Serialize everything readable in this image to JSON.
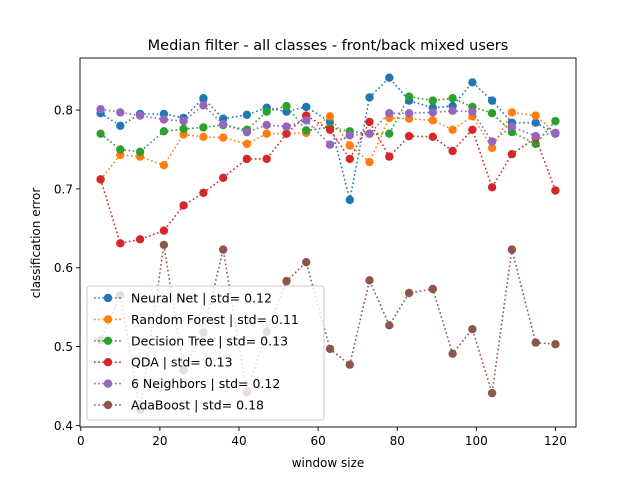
{
  "chart_data": {
    "type": "line",
    "title": "Median filter - all classes - front/back mixed users",
    "xlabel": "window size",
    "ylabel": "classification error",
    "xlim": [
      -0.2,
      125.2
    ],
    "ylim": [
      0.398,
      0.866
    ],
    "xticks": [
      0,
      20,
      40,
      60,
      80,
      100,
      120
    ],
    "xtick_labels": [
      "0",
      "20",
      "40",
      "60",
      "80",
      "100",
      "120"
    ],
    "yticks": [
      0.4,
      0.5,
      0.6,
      0.7,
      0.8
    ],
    "ytick_labels": [
      "0.4",
      "0.5",
      "0.6",
      "0.7",
      "0.8"
    ],
    "grid": false,
    "legend_position": "lower-left",
    "marker": "circle",
    "line_style": "dotted",
    "x": [
      5,
      10,
      15,
      21,
      26,
      31,
      36,
      42,
      47,
      52,
      57,
      63,
      68,
      73,
      78,
      83,
      89,
      94,
      99,
      104,
      109,
      115,
      120
    ],
    "series": [
      {
        "name": "Neural Net | std= 0.12",
        "color": "#1f77b4",
        "values": [
          0.796,
          0.78,
          0.795,
          0.795,
          0.79,
          0.815,
          0.789,
          0.794,
          0.803,
          0.798,
          0.804,
          0.785,
          0.686,
          0.816,
          0.841,
          0.812,
          0.803,
          0.805,
          0.835,
          0.812,
          0.784,
          0.784,
          0.77
        ]
      },
      {
        "name": "Random Forest | std= 0.11",
        "color": "#ff7f0e",
        "values": [
          0.712,
          0.743,
          0.741,
          0.73,
          0.769,
          0.766,
          0.765,
          0.757,
          0.77,
          0.77,
          0.771,
          0.792,
          0.755,
          0.734,
          0.79,
          0.789,
          0.787,
          0.775,
          0.792,
          0.752,
          0.797,
          0.793,
          0.771
        ]
      },
      {
        "name": "Decision Tree | std= 0.13",
        "color": "#2ca02c",
        "values": [
          0.77,
          0.75,
          0.747,
          0.773,
          0.776,
          0.778,
          0.781,
          0.775,
          0.798,
          0.805,
          0.774,
          0.778,
          0.773,
          0.77,
          0.77,
          0.817,
          0.812,
          0.815,
          0.804,
          0.796,
          0.772,
          0.757,
          0.786
        ]
      },
      {
        "name": "QDA | std= 0.13",
        "color": "#d62728",
        "values": [
          0.712,
          0.631,
          0.636,
          0.647,
          0.679,
          0.695,
          0.714,
          0.738,
          0.738,
          0.77,
          0.793,
          0.775,
          0.738,
          0.785,
          0.741,
          0.767,
          0.766,
          0.748,
          0.775,
          0.702,
          0.744,
          0.765,
          0.698
        ]
      },
      {
        "name": "6 Neighbors | std= 0.12",
        "color": "#9467bd",
        "values": [
          0.801,
          0.797,
          0.793,
          0.788,
          0.786,
          0.806,
          0.782,
          0.772,
          0.781,
          0.779,
          0.787,
          0.756,
          0.768,
          0.77,
          0.796,
          0.796,
          0.797,
          0.799,
          0.798,
          0.76,
          0.779,
          0.767,
          0.771
        ]
      },
      {
        "name": "AdaBoost | std= 0.18",
        "color": "#8c564b",
        "values": [
          0.508,
          0.565,
          0.42,
          0.629,
          0.47,
          0.518,
          0.623,
          0.442,
          0.519,
          0.583,
          0.607,
          0.497,
          0.477,
          0.584,
          0.527,
          0.568,
          0.573,
          0.491,
          0.522,
          0.441,
          0.623,
          0.505,
          0.503
        ]
      }
    ]
  }
}
